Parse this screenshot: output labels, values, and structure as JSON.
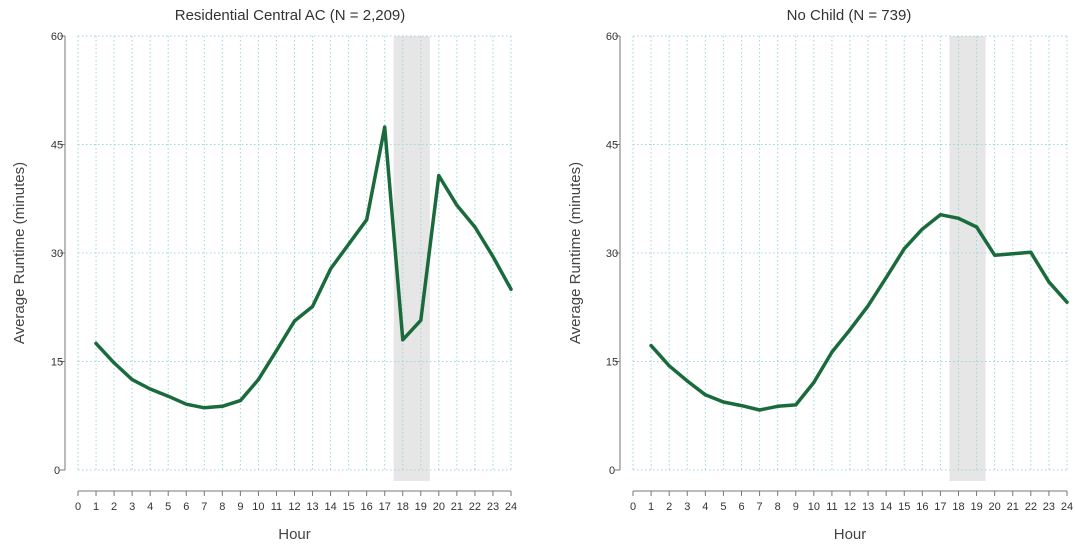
{
  "chart_data": [
    {
      "type": "line",
      "title": "Residential Central AC (N = 2,209)",
      "xlabel": "Hour",
      "ylabel": "Average Runtime (minutes)",
      "xlim": [
        0,
        24
      ],
      "ylim": [
        0,
        60
      ],
      "xticks": [
        "0",
        "1",
        "2",
        "3",
        "4",
        "5",
        "6",
        "7",
        "8",
        "9",
        "10",
        "11",
        "12",
        "13",
        "14",
        "15",
        "16",
        "17",
        "18",
        "19",
        "20",
        "21",
        "22",
        "23",
        "24"
      ],
      "yticks": [
        "0",
        "15",
        "30",
        "45",
        "60"
      ],
      "grid": "dotted",
      "shaded_band": [
        17.5,
        19.5
      ],
      "line_color": "#1a6b3c",
      "band_color": "#e6e6e6",
      "x": [
        1,
        2,
        3,
        4,
        5,
        6,
        7,
        8,
        9,
        10,
        11,
        12,
        13,
        14,
        15,
        16,
        17,
        18,
        19,
        20,
        21,
        22,
        23,
        24
      ],
      "values": [
        17.5,
        14.8,
        12.5,
        11.2,
        10.2,
        9.1,
        8.6,
        8.8,
        9.6,
        12.5,
        16.5,
        20.6,
        22.6,
        27.8,
        31.2,
        34.6,
        47.4,
        18.0,
        20.7,
        40.7,
        36.6,
        33.6,
        29.5,
        25.0
      ]
    },
    {
      "type": "line",
      "title": "No Child (N = 739)",
      "xlabel": "Hour",
      "ylabel": "Average Runtime (minutes)",
      "xlim": [
        0,
        24
      ],
      "ylim": [
        0,
        60
      ],
      "xticks": [
        "0",
        "1",
        "2",
        "3",
        "4",
        "5",
        "6",
        "7",
        "8",
        "9",
        "10",
        "11",
        "12",
        "13",
        "14",
        "15",
        "16",
        "17",
        "18",
        "19",
        "20",
        "21",
        "22",
        "23",
        "24"
      ],
      "yticks": [
        "0",
        "15",
        "30",
        "45",
        "60"
      ],
      "grid": "dotted",
      "shaded_band": [
        17.5,
        19.5
      ],
      "line_color": "#1a6b3c",
      "band_color": "#e6e6e6",
      "x": [
        1,
        2,
        3,
        4,
        5,
        6,
        7,
        8,
        9,
        10,
        11,
        12,
        13,
        14,
        15,
        16,
        17,
        18,
        19,
        20,
        21,
        22,
        23,
        24
      ],
      "values": [
        17.2,
        14.4,
        12.3,
        10.4,
        9.4,
        8.9,
        8.3,
        8.8,
        9.0,
        12.1,
        16.3,
        19.4,
        22.7,
        26.6,
        30.6,
        33.3,
        35.3,
        34.8,
        33.6,
        29.7,
        29.9,
        30.1,
        26.0,
        23.2
      ]
    }
  ]
}
